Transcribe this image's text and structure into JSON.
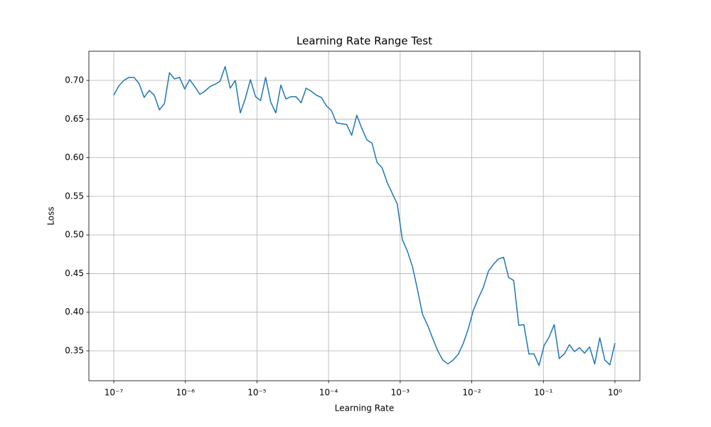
{
  "chart_data": {
    "type": "line",
    "title": "Learning Rate Range Test",
    "x_label": "Learning Rate",
    "y_label": "Loss",
    "x_scale": "log",
    "grid": true,
    "x": [
      1e-07,
      1.177e-07,
      1.385e-07,
      1.63e-07,
      1.918e-07,
      2.257e-07,
      2.656e-07,
      3.126e-07,
      3.679e-07,
      4.329e-07,
      5.094e-07,
      5.995e-07,
      7.055e-07,
      8.302e-07,
      9.77e-07,
      1.15e-06,
      1.353e-06,
      1.592e-06,
      1.874e-06,
      2.205e-06,
      2.595e-06,
      3.054e-06,
      3.594e-06,
      4.229e-06,
      4.977e-06,
      5.857e-06,
      6.893e-06,
      8.111e-06,
      9.545e-06,
      1.123e-05,
      1.322e-05,
      1.556e-05,
      1.831e-05,
      2.154e-05,
      2.535e-05,
      2.984e-05,
      3.511e-05,
      4.132e-05,
      4.863e-05,
      5.722e-05,
      6.734e-05,
      7.925e-05,
      9.326e-05,
      0.0001097,
      0.0001292,
      0.000152,
      0.0001789,
      0.0002105,
      0.0002477,
      0.0002915,
      0.0003431,
      0.0004037,
      0.0004751,
      0.0005591,
      0.0006579,
      0.0007743,
      0.0009112,
      0.001072,
      0.001262,
      0.001485,
      0.001748,
      0.002057,
      0.00242,
      0.002848,
      0.003352,
      0.003945,
      0.004642,
      0.005462,
      0.006428,
      0.007565,
      0.008902,
      0.01048,
      0.01233,
      0.01451,
      0.01707,
      0.02009,
      0.02364,
      0.02783,
      0.03275,
      0.03854,
      0.04535,
      0.05337,
      0.0628,
      0.07391,
      0.08697,
      0.1024,
      0.1205,
      0.1418,
      0.1668,
      0.1963,
      0.231,
      0.2719,
      0.3199,
      0.3765,
      0.4431,
      0.5214,
      0.6136,
      0.7221,
      0.8498,
      1
    ],
    "series": [
      {
        "color": "#1f77b4",
        "values": [
          0.681,
          0.693,
          0.7,
          0.704,
          0.704,
          0.696,
          0.678,
          0.687,
          0.681,
          0.662,
          0.67,
          0.71,
          0.702,
          0.704,
          0.689,
          0.701,
          0.692,
          0.682,
          0.686,
          0.692,
          0.695,
          0.699,
          0.718,
          0.69,
          0.7,
          0.658,
          0.677,
          0.701,
          0.679,
          0.674,
          0.704,
          0.672,
          0.658,
          0.694,
          0.676,
          0.679,
          0.679,
          0.671,
          0.69,
          0.686,
          0.681,
          0.678,
          0.667,
          0.661,
          0.645,
          0.644,
          0.643,
          0.629,
          0.655,
          0.638,
          0.623,
          0.619,
          0.594,
          0.587,
          0.568,
          0.554,
          0.54,
          0.494,
          0.479,
          0.459,
          0.429,
          0.397,
          0.383,
          0.366,
          0.35,
          0.338,
          0.333,
          0.338,
          0.345,
          0.359,
          0.378,
          0.402,
          0.418,
          0.432,
          0.453,
          0.462,
          0.469,
          0.471,
          0.445,
          0.441,
          0.383,
          0.384,
          0.346,
          0.346,
          0.331,
          0.357,
          0.368,
          0.384,
          0.34,
          0.346,
          0.358,
          0.349,
          0.354,
          0.347,
          0.355,
          0.333,
          0.367,
          0.338,
          0.332,
          0.36
        ]
      }
    ],
    "xlim": [
      4.49e-08,
      2.23
    ],
    "ylim": [
      0.3113,
      0.7378
    ],
    "xticks": [
      {
        "value": 1e-07,
        "label": "10⁻⁷"
      },
      {
        "value": 1e-06,
        "label": "10⁻⁶"
      },
      {
        "value": 1e-05,
        "label": "10⁻⁵"
      },
      {
        "value": 0.0001,
        "label": "10⁻⁴"
      },
      {
        "value": 0.001,
        "label": "10⁻³"
      },
      {
        "value": 0.01,
        "label": "10⁻²"
      },
      {
        "value": 0.1,
        "label": "10⁻¹"
      },
      {
        "value": 1,
        "label": "10⁰"
      }
    ],
    "yticks": [
      0.35,
      {
        "value": 0.4,
        "label": "0.40"
      },
      0.45,
      {
        "value": 0.5,
        "label": "0.50"
      },
      0.55,
      {
        "value": 0.6,
        "label": "0.60"
      },
      0.65,
      {
        "value": 0.7,
        "label": "0.70"
      }
    ]
  }
}
